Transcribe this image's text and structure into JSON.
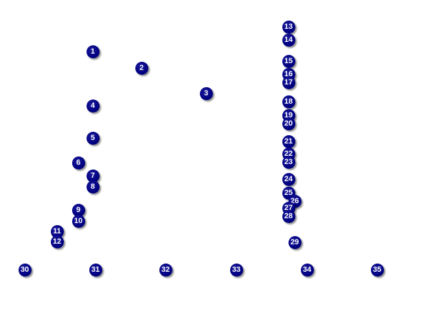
{
  "node_color": "#000080",
  "text_color": "#ffffff",
  "nodes": [
    "1",
    "2",
    "3",
    "4",
    "5",
    "6",
    "7",
    "8",
    "9",
    "10",
    "11",
    "12",
    "13",
    "14",
    "15",
    "16",
    "17",
    "18",
    "19",
    "20",
    "21",
    "22",
    "23",
    "24",
    "25",
    "26",
    "27",
    "28",
    "29",
    "30",
    "31",
    "32",
    "33",
    "34",
    "35"
  ]
}
